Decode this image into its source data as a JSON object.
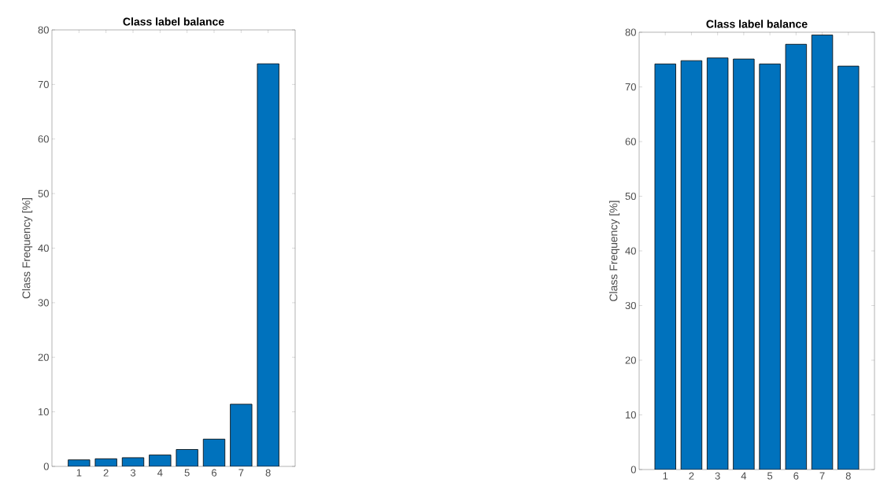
{
  "chart_data": [
    {
      "type": "bar",
      "title": "Class label balance",
      "ylabel": "Class Frequency [%]",
      "categories": [
        "1",
        "2",
        "3",
        "4",
        "5",
        "6",
        "7",
        "8"
      ],
      "values": [
        1.2,
        1.4,
        1.6,
        2.1,
        3.1,
        5.0,
        11.4,
        73.8
      ],
      "color": "#0072bd",
      "ylim": [
        0,
        80
      ],
      "yticks": [
        0,
        10,
        20,
        30,
        40,
        50,
        60,
        70,
        80
      ]
    },
    {
      "type": "bar",
      "title": "Class label balance",
      "ylabel": "Class Frequency [%]",
      "categories": [
        "1",
        "2",
        "3",
        "4",
        "5",
        "6",
        "7",
        "8"
      ],
      "values": [
        74.2,
        74.8,
        75.3,
        75.1,
        74.2,
        77.8,
        79.5,
        73.8
      ],
      "color": "#0072bd",
      "ylim": [
        0,
        80
      ],
      "yticks": [
        0,
        10,
        20,
        30,
        40,
        50,
        60,
        70,
        80
      ]
    }
  ]
}
